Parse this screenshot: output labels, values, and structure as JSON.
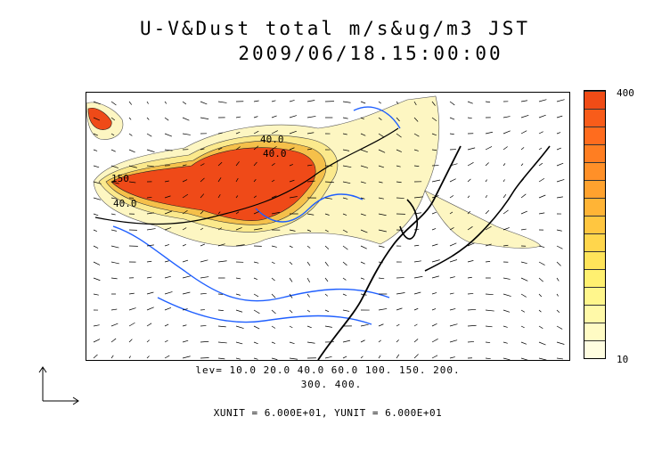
{
  "title": {
    "line1": "U-V&Dust total m/s&ug/m3 JST",
    "line2": "2009/06/18.15:00:00"
  },
  "colorbar": {
    "max_label": "400",
    "min_label": "10",
    "colors": [
      "#fffde0",
      "#fffbc4",
      "#fff9a8",
      "#fff68c",
      "#fff070",
      "#ffe45a",
      "#ffd64c",
      "#ffc640",
      "#ffb436",
      "#ffa22e",
      "#ff9028",
      "#ff7e22",
      "#ff6c1e",
      "#f85c1a",
      "#f04c16"
    ]
  },
  "contour_labels": [
    "40.0",
    "150",
    "40.0",
    "40.0"
  ],
  "levels": {
    "line1": "lev= 10.0 20.0 40.0 60.0 100. 150. 200.",
    "line2": "300. 400."
  },
  "units": "XUNIT = 6.000E+01, YUNIT = 6.000E+01",
  "fill_colors": {
    "pale": "#fdf6c2",
    "light": "#fbe98c",
    "mid": "#f5c04a",
    "dense": "#ef4a18",
    "river": "#1f5fff",
    "coast": "#000000"
  }
}
